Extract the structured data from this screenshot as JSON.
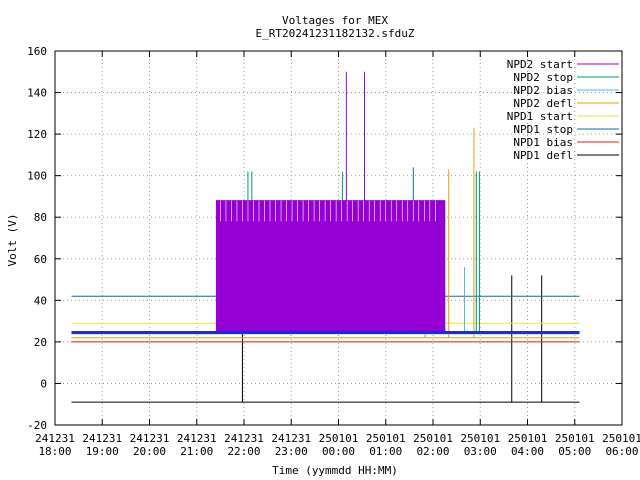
{
  "chart_data": {
    "type": "line",
    "title": "Voltages for MEX",
    "subtitle": "E_RT20241231182132.sfduZ",
    "xlabel": "Time (yymmdd HH:MM)",
    "ylabel": "Volt (V)",
    "ylim": [
      -20,
      160
    ],
    "yticks": [
      -20,
      0,
      20,
      40,
      60,
      80,
      100,
      120,
      140,
      160
    ],
    "xlim": [
      "2024-12-31 18:00",
      "2025-01-01 06:00"
    ],
    "xticks": [
      {
        "time": "2024-12-31 18:00",
        "date_label": "241231",
        "time_label": "18:00"
      },
      {
        "time": "2024-12-31 19:00",
        "date_label": "241231",
        "time_label": "19:00"
      },
      {
        "time": "2024-12-31 20:00",
        "date_label": "241231",
        "time_label": "20:00"
      },
      {
        "time": "2024-12-31 21:00",
        "date_label": "241231",
        "time_label": "21:00"
      },
      {
        "time": "2024-12-31 22:00",
        "date_label": "241231",
        "time_label": "22:00"
      },
      {
        "time": "2024-12-31 23:00",
        "date_label": "241231",
        "time_label": "23:00"
      },
      {
        "time": "2025-01-01 00:00",
        "date_label": "250101",
        "time_label": "00:00"
      },
      {
        "time": "2025-01-01 01:00",
        "date_label": "250101",
        "time_label": "01:00"
      },
      {
        "time": "2025-01-01 02:00",
        "date_label": "250101",
        "time_label": "02:00"
      },
      {
        "time": "2025-01-01 03:00",
        "date_label": "250101",
        "time_label": "03:00"
      },
      {
        "time": "2025-01-01 04:00",
        "date_label": "250101",
        "time_label": "04:00"
      },
      {
        "time": "2025-01-01 05:00",
        "date_label": "250101",
        "time_label": "05:00"
      },
      {
        "time": "2025-01-01 06:00",
        "date_label": "250101",
        "time_label": "06:00"
      }
    ],
    "grid": true,
    "legend_position": "top-right",
    "series": [
      {
        "name": "NPD2 start",
        "color": "#9400d3",
        "points": [
          [
            "2024-12-31 18:21",
            25
          ],
          [
            "2024-12-31 21:25",
            25
          ],
          [
            "2024-12-31 21:25",
            88
          ],
          [
            "2025-01-01 02:15",
            88
          ],
          [
            "2025-01-01 02:15",
            25
          ],
          [
            "2025-01-01 05:06",
            25
          ]
        ],
        "spikes": [
          [
            "2025-01-01 00:10",
            150
          ],
          [
            "2025-01-01 00:33",
            150
          ]
        ]
      },
      {
        "name": "NPD2 stop",
        "color": "#009e73",
        "points": [
          [
            "2024-12-31 18:21",
            24
          ],
          [
            "2025-01-01 05:06",
            24
          ]
        ],
        "spikes": [
          [
            "2024-12-31 22:05",
            102
          ],
          [
            "2024-12-31 22:10",
            102
          ],
          [
            "2025-01-01 00:05",
            102
          ],
          [
            "2025-01-01 02:55",
            102
          ],
          [
            "2025-01-01 02:59",
            102
          ]
        ]
      },
      {
        "name": "NPD2 bias",
        "color": "#56b4e9",
        "points": [
          [
            "2024-12-31 18:21",
            24
          ],
          [
            "2025-01-01 05:06",
            24
          ]
        ],
        "spikes": [
          [
            "2025-01-01 02:40",
            56
          ]
        ]
      },
      {
        "name": "NPD2 defl",
        "color": "#e69f00",
        "points": [
          [
            "2024-12-31 18:21",
            22
          ],
          [
            "2025-01-01 05:06",
            22
          ]
        ],
        "spikes": [
          [
            "2025-01-01 01:50",
            41
          ],
          [
            "2025-01-01 02:20",
            103
          ],
          [
            "2025-01-01 02:52",
            123
          ]
        ]
      },
      {
        "name": "NPD1 start",
        "color": "#f0e442",
        "points": [
          [
            "2024-12-31 18:21",
            29
          ],
          [
            "2025-01-01 05:06",
            29
          ]
        ],
        "spikes": [
          [
            "2024-12-31 22:25",
            70
          ]
        ]
      },
      {
        "name": "NPD1 stop",
        "color": "#0072b2",
        "points": [
          [
            "2024-12-31 18:21",
            42
          ],
          [
            "2025-01-01 05:06",
            42
          ]
        ],
        "spikes": [
          [
            "2025-01-01 01:35",
            104
          ]
        ]
      },
      {
        "name": "NPD1 bias",
        "color": "#e51e10",
        "points": [
          [
            "2024-12-31 18:21",
            20
          ],
          [
            "2025-01-01 05:06",
            20
          ]
        ],
        "spikes": []
      },
      {
        "name": "NPD1 defl",
        "color": "#000000",
        "points": [
          [
            "2024-12-31 18:21",
            -9
          ],
          [
            "2025-01-01 05:06",
            -9
          ]
        ],
        "spikes": [
          [
            "2024-12-31 21:58",
            52
          ],
          [
            "2025-01-01 03:40",
            52
          ],
          [
            "2025-01-01 04:18",
            52
          ]
        ]
      }
    ]
  }
}
